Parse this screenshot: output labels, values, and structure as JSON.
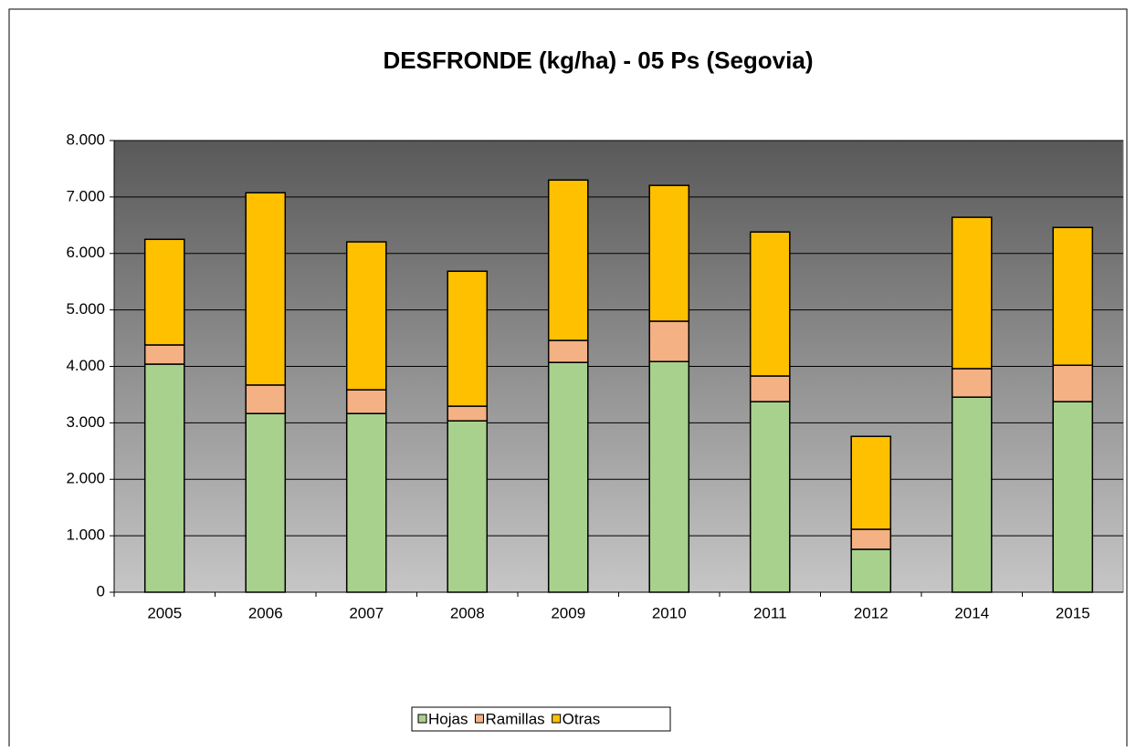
{
  "chart_data": {
    "type": "stacked_bar",
    "title": "DESFRONDE (kg/ha) - 05 Ps (Segovia)",
    "categories": [
      "2005",
      "2006",
      "2007",
      "2008",
      "2009",
      "2010",
      "2011",
      "2012",
      "2014",
      "2015"
    ],
    "series": [
      {
        "name": "Hojas",
        "color": "#a9d18e",
        "values": [
          4040,
          3165,
          3165,
          3035,
          4070,
          4085,
          3375,
          760,
          3455,
          3375
        ]
      },
      {
        "name": "Ramillas",
        "color": "#f4b183",
        "values": [
          340,
          505,
          420,
          260,
          390,
          715,
          455,
          355,
          505,
          645
        ]
      },
      {
        "name": "Otras",
        "color": "#ffc000",
        "values": [
          1870,
          3405,
          2620,
          2390,
          2840,
          2405,
          2550,
          1645,
          2680,
          2440
        ]
      }
    ],
    "ylim": [
      0,
      8000
    ],
    "yticks": [
      0,
      {
        "value": 1000,
        "label": "1.000"
      },
      {
        "value": 2000,
        "label": "2.000"
      },
      {
        "value": 3000,
        "label": "3.000"
      },
      {
        "value": 4000,
        "label": "4.000"
      },
      {
        "value": 5000,
        "label": "5.000"
      },
      {
        "value": 6000,
        "label": "6.000"
      },
      {
        "value": 7000,
        "label": "7.000"
      },
      {
        "value": 8000,
        "label": "8.000"
      }
    ],
    "grid": true,
    "legend": "bottom"
  }
}
